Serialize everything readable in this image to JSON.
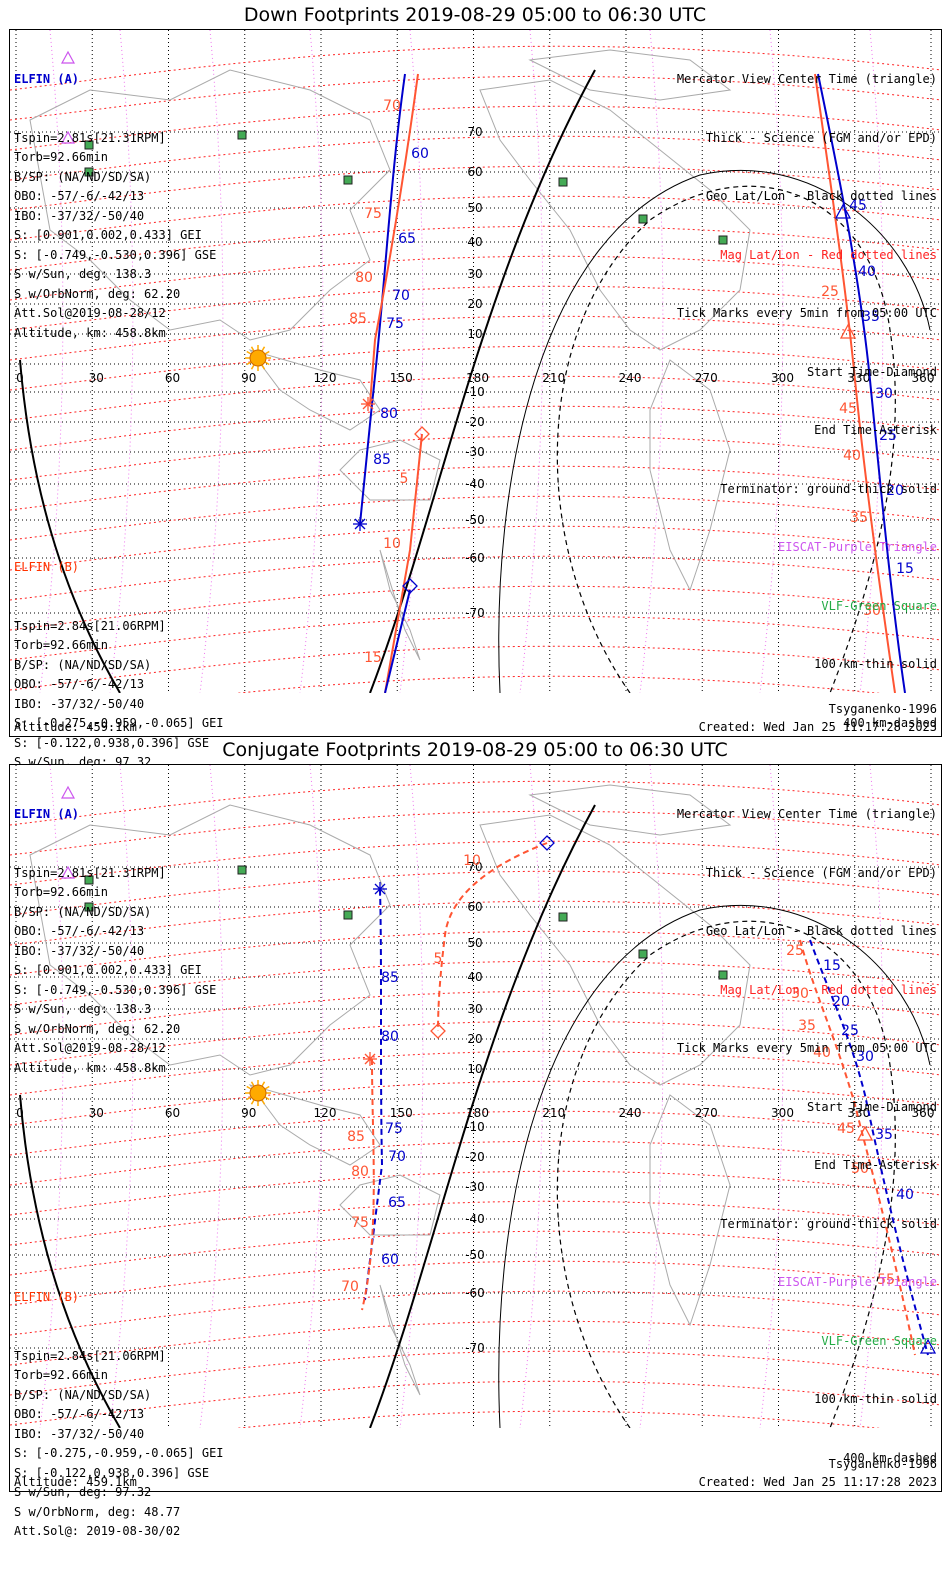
{
  "panels": [
    {
      "title": "Down Footprints 2019-08-29 05:00 to 06:30 UTC",
      "footer_left": "Altitude: 459.1km",
      "footer_right_model": "Tsyganenko-1996",
      "footer_right_created": "Created: Wed Jan 25 11:17:28 2023"
    },
    {
      "title": "Conjugate Footprints 2019-08-29 05:00 to 06:30 UTC",
      "footer_left": "Altitude: 459.1km",
      "footer_right_model": "Tsyganenko-1996",
      "footer_right_created": "Created: Wed Jan 25 11:17:28 2023"
    }
  ],
  "elfin_a": {
    "title": "ELFIN (A)",
    "lines": [
      "Tspin=2.81s[21.31RPM]",
      "Torb=92.66min",
      "B/SP: (NA/ND/SD/SA)",
      "OBO: -57/-6/-42/13",
      "IBO: -37/32/-50/40",
      "S: [0.901,0.002,0.433] GEI",
      "S: [-0.749,-0.530,0.396] GSE",
      "S w/Sun, deg: 138.3",
      "S w/OrbNorm, deg: 62.20",
      "Att.Sol@2019-08-28/12",
      "Altitude, km: 458.8km"
    ]
  },
  "elfin_b": {
    "title": "ELFIN (B)",
    "lines": [
      "Tspin=2.84s[21.06RPM]",
      "Torb=92.66min",
      "B/SP: (NA/ND/SD/SA)",
      "OBO: -57/-6/-42/13",
      "IBO: -37/32/-50/40",
      "S: [-0.275,-0.959,-0.065] GEI",
      "S: [-0.122,0.938,0.396] GSE",
      "S w/Sun, deg: 97.32",
      "S w/OrbNorm, deg: 48.77",
      "Att.Sol@: 2019-08-30/02"
    ]
  },
  "legend": {
    "mercator": "Mercator View Center Time (triangle)",
    "thick": "Thick - Science (FGM and/or EPD)",
    "geo": "Geo Lat/Lon - Black dotted lines",
    "mag": "Mag Lat/Lon - Red dotted lines",
    "ticks": "Tick Marks every 5min from 05:00 UTC",
    "start": "Start Time-Diamond",
    "end": "End Time-Asterisk",
    "terminator": "Terminator: ground-thick solid",
    "ebeam": "EISCAT-Purple Triangle",
    "vlf": "VLF-Green Square",
    "km100": "100 km-thin solid",
    "km400": "400 km-dashed"
  },
  "colors": {
    "elfin_a": "#0000cc",
    "elfin_b": "#ff5533",
    "mag_grid": "#ff2222",
    "geo_grid": "#000000",
    "mag_lon": "#ee77ee",
    "vlf": "#44aa55",
    "sun": "#ffaa00"
  },
  "axis": {
    "lon_labels": [
      "0",
      "30",
      "60",
      "90",
      "120",
      "150",
      "180",
      "210",
      "240",
      "270",
      "300",
      "330",
      "360"
    ],
    "lat_labels": [
      "70",
      "60",
      "50",
      "40",
      "30",
      "20",
      "10",
      "-10",
      "-20",
      "-30",
      "-40",
      "-50",
      "-60",
      "-70"
    ]
  },
  "track_labels": {
    "down_a": [
      "60",
      "65",
      "70",
      "75",
      "80",
      "85",
      "45",
      "40",
      "35",
      "30",
      "25",
      "20",
      "15"
    ],
    "down_b": [
      "70",
      "75",
      "80",
      "85",
      "5",
      "10",
      "15",
      "45",
      "40",
      "35",
      "30",
      "25",
      "50"
    ],
    "conj_a": [
      "85",
      "80",
      "75",
      "70",
      "65",
      "60",
      "15",
      "20",
      "25",
      "30",
      "35",
      "40"
    ],
    "conj_b": [
      "10",
      "5",
      "85",
      "80",
      "75",
      "70",
      "25",
      "30",
      "35",
      "40",
      "45",
      "50",
      "55"
    ]
  }
}
